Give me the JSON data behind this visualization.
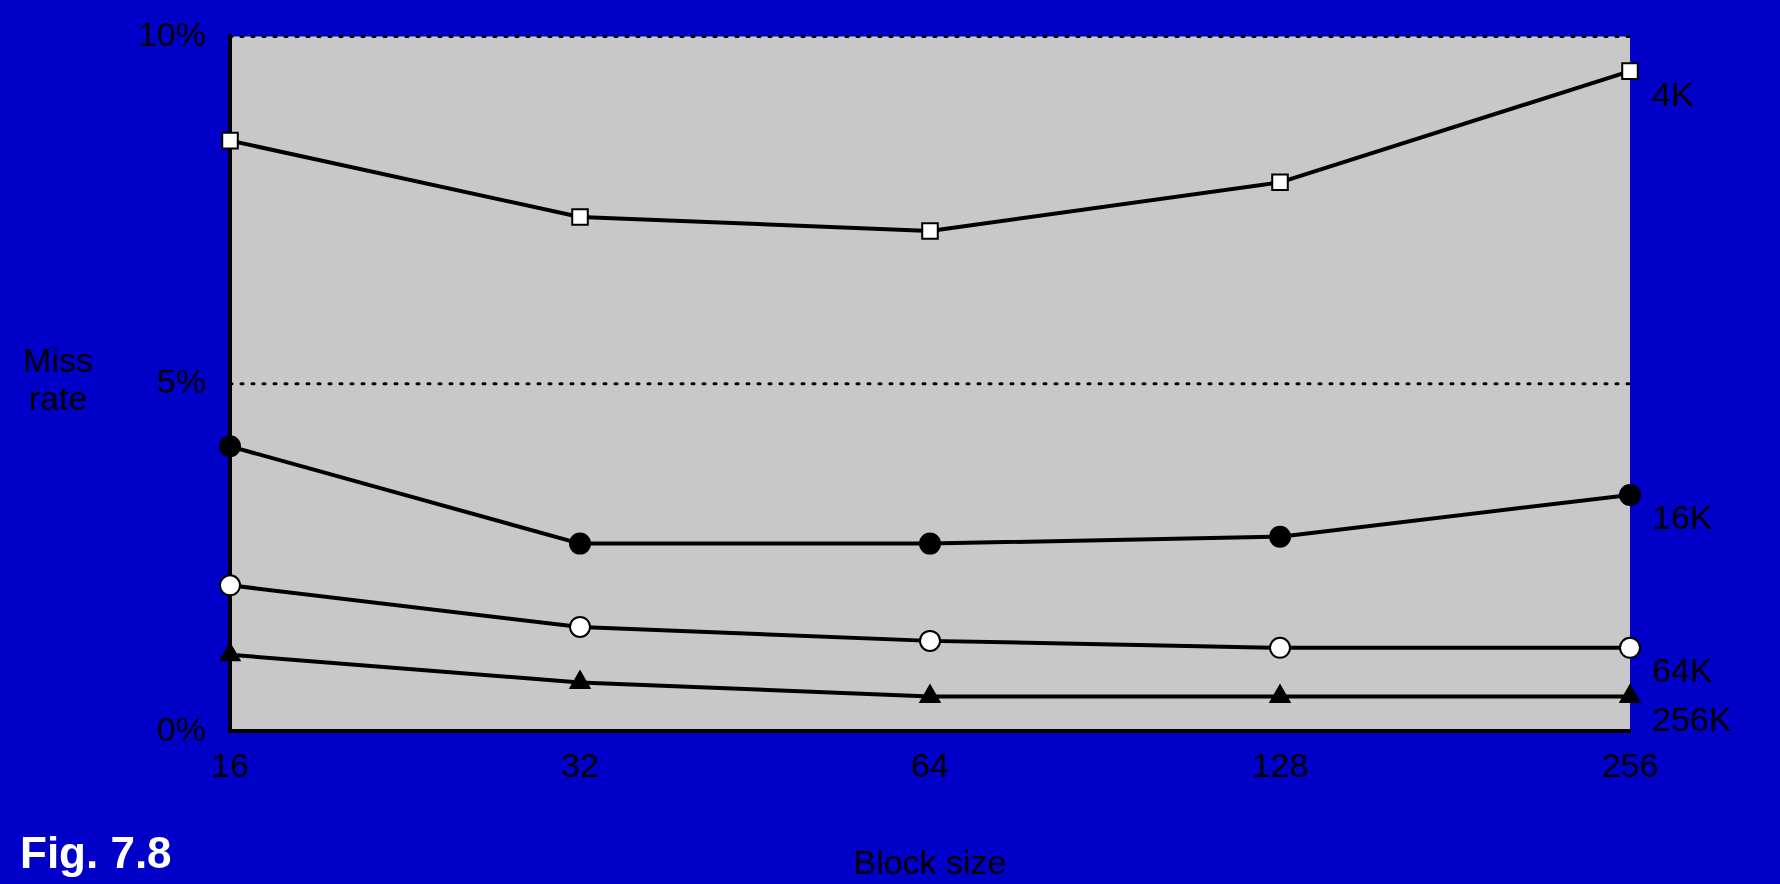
{
  "chart_data": {
    "type": "line",
    "xlabel": "Block size",
    "ylabel": "Miss rate",
    "categories": [
      "16",
      "32",
      "64",
      "128",
      "256"
    ],
    "series": [
      {
        "name": "4K",
        "color": "#ffffff",
        "marker": "square",
        "values": [
          8.5,
          7.4,
          7.2,
          7.9,
          9.5
        ]
      },
      {
        "name": "16K",
        "color": "#000000",
        "marker": "circle",
        "values": [
          4.1,
          2.7,
          2.7,
          2.8,
          3.4
        ]
      },
      {
        "name": "64K",
        "color": "#ffffff",
        "marker": "circle",
        "values": [
          2.1,
          1.5,
          1.3,
          1.2,
          1.2
        ]
      },
      {
        "name": "256K",
        "color": "#000000",
        "marker": "triangle",
        "values": [
          1.1,
          0.7,
          0.5,
          0.5,
          0.5
        ]
      }
    ],
    "ylim": [
      0,
      10
    ],
    "yticks": [
      {
        "value": 0,
        "label": "0%"
      },
      {
        "value": 5,
        "label": "5%"
      },
      {
        "value": 10,
        "label": "10%"
      }
    ],
    "grid": "y",
    "legend": false,
    "line_style": "solid",
    "annotations": [
      "Fig. 7.8"
    ]
  }
}
